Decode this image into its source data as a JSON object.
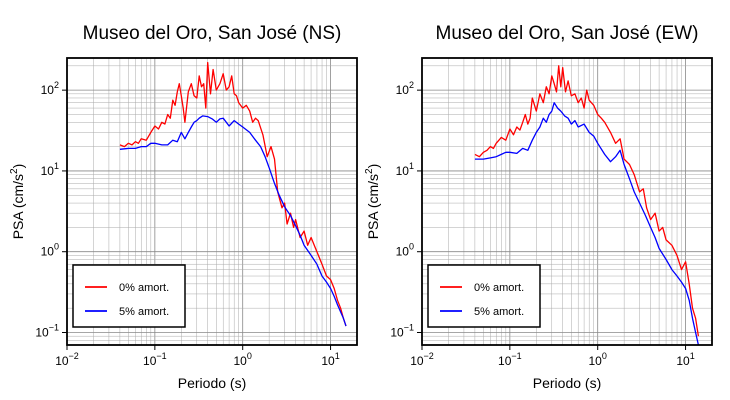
{
  "chart_data": [
    {
      "type": "line",
      "title": "Museo del Oro, San José (NS)",
      "xlabel": "Periodo (s)",
      "ylabel_main": "PSA (cm/s",
      "ylabel_sup": "2",
      "ylabel_close": ")",
      "x_scale": "log",
      "y_scale": "log",
      "xlim": [
        0.01,
        20
      ],
      "ylim": [
        0.07,
        250
      ],
      "x_ticks": [
        {
          "base": "10",
          "exp": "−2"
        },
        {
          "base": "10",
          "exp": "−1"
        },
        {
          "base": "10",
          "exp": "0"
        },
        {
          "base": "10",
          "exp": "1"
        }
      ],
      "y_ticks": [
        {
          "base": "10",
          "exp": "−1"
        },
        {
          "base": "10",
          "exp": "0"
        },
        {
          "base": "10",
          "exp": "1"
        },
        {
          "base": "10",
          "exp": "2"
        }
      ],
      "grid": true,
      "legend_position": "bottom-left",
      "series": [
        {
          "name": "0% amort.",
          "color": "#ff0000",
          "x": [
            0.04,
            0.045,
            0.05,
            0.055,
            0.06,
            0.065,
            0.07,
            0.08,
            0.09,
            0.1,
            0.11,
            0.12,
            0.13,
            0.14,
            0.15,
            0.16,
            0.17,
            0.18,
            0.19,
            0.2,
            0.21,
            0.22,
            0.24,
            0.26,
            0.28,
            0.3,
            0.32,
            0.34,
            0.36,
            0.38,
            0.4,
            0.43,
            0.46,
            0.5,
            0.55,
            0.6,
            0.65,
            0.7,
            0.75,
            0.8,
            0.85,
            0.9,
            1.0,
            1.1,
            1.2,
            1.3,
            1.4,
            1.5,
            1.7,
            1.9,
            2.1,
            2.3,
            2.5,
            2.8,
            3.0,
            3.2,
            3.5,
            3.8,
            4.0,
            4.5,
            5.0,
            5.5,
            6.0,
            7.0,
            8.0,
            9.0,
            10.0,
            11.0,
            12.0,
            13.0,
            14.0,
            15.0
          ],
          "y": [
            21,
            20,
            22,
            21,
            23,
            22,
            25,
            24,
            30,
            36,
            33,
            40,
            38,
            50,
            45,
            75,
            65,
            95,
            120,
            85,
            60,
            40,
            95,
            120,
            85,
            80,
            150,
            110,
            120,
            60,
            220,
            90,
            180,
            100,
            120,
            160,
            100,
            110,
            150,
            90,
            85,
            70,
            60,
            65,
            55,
            40,
            45,
            42,
            28,
            15,
            20,
            14,
            5.5,
            3.5,
            4.0,
            2.2,
            3.0,
            2.0,
            2.5,
            1.5,
            1.8,
            1.2,
            1.5,
            1.0,
            0.7,
            0.5,
            0.45,
            0.35,
            0.25,
            0.2,
            0.15,
            0.12
          ]
        },
        {
          "name": "5% amort.",
          "color": "#0000ff",
          "x": [
            0.04,
            0.05,
            0.06,
            0.07,
            0.08,
            0.09,
            0.1,
            0.12,
            0.14,
            0.16,
            0.18,
            0.2,
            0.22,
            0.24,
            0.26,
            0.28,
            0.3,
            0.32,
            0.35,
            0.4,
            0.45,
            0.5,
            0.55,
            0.6,
            0.7,
            0.8,
            0.9,
            1.0,
            1.2,
            1.4,
            1.6,
            1.8,
            2.0,
            2.3,
            2.6,
            3.0,
            3.5,
            4.0,
            4.5,
            5.0,
            6.0,
            7.0,
            8.0,
            9.0,
            10.0,
            11.0,
            12.0,
            13.0,
            14.0,
            15.0
          ],
          "y": [
            18.5,
            19,
            19,
            20,
            20,
            22,
            22,
            21,
            21,
            24,
            23,
            30,
            25,
            30,
            35,
            40,
            42,
            45,
            48,
            47,
            44,
            40,
            44,
            45,
            36,
            42,
            38,
            35,
            30,
            24,
            20,
            15,
            11,
            7,
            5,
            3.6,
            2.8,
            2.1,
            1.6,
            1.2,
            0.9,
            0.7,
            0.5,
            0.42,
            0.35,
            0.28,
            0.22,
            0.18,
            0.15,
            0.12
          ]
        }
      ]
    },
    {
      "type": "line",
      "title": "Museo del Oro, San José (EW)",
      "xlabel": "Periodo (s)",
      "ylabel_main": "PSA (cm/s",
      "ylabel_sup": "2",
      "ylabel_close": ")",
      "x_scale": "log",
      "y_scale": "log",
      "xlim": [
        0.01,
        20
      ],
      "ylim": [
        0.07,
        250
      ],
      "x_ticks": [
        {
          "base": "10",
          "exp": "−2"
        },
        {
          "base": "10",
          "exp": "−1"
        },
        {
          "base": "10",
          "exp": "0"
        },
        {
          "base": "10",
          "exp": "1"
        }
      ],
      "y_ticks": [
        {
          "base": "10",
          "exp": "−1"
        },
        {
          "base": "10",
          "exp": "0"
        },
        {
          "base": "10",
          "exp": "1"
        },
        {
          "base": "10",
          "exp": "2"
        }
      ],
      "grid": true,
      "legend_position": "bottom-left",
      "series": [
        {
          "name": "0% amort.",
          "color": "#ff0000",
          "x": [
            0.04,
            0.045,
            0.05,
            0.055,
            0.06,
            0.065,
            0.07,
            0.08,
            0.09,
            0.1,
            0.11,
            0.12,
            0.13,
            0.14,
            0.15,
            0.16,
            0.17,
            0.18,
            0.2,
            0.22,
            0.24,
            0.26,
            0.28,
            0.3,
            0.32,
            0.34,
            0.36,
            0.38,
            0.4,
            0.43,
            0.46,
            0.5,
            0.55,
            0.6,
            0.65,
            0.7,
            0.75,
            0.8,
            0.9,
            1.0,
            1.1,
            1.2,
            1.4,
            1.6,
            1.8,
            2.0,
            2.3,
            2.6,
            3.0,
            3.3,
            3.6,
            4.0,
            4.5,
            5.0,
            5.5,
            6.0,
            7.0,
            8.0,
            9.0,
            10.0,
            11.0,
            12.0,
            13.0,
            14.0
          ],
          "y": [
            16,
            15,
            17,
            18,
            20,
            19,
            22,
            26,
            24,
            33,
            28,
            35,
            32,
            40,
            50,
            38,
            45,
            80,
            55,
            90,
            70,
            110,
            90,
            150,
            120,
            95,
            200,
            110,
            190,
            95,
            130,
            85,
            90,
            70,
            80,
            60,
            100,
            75,
            65,
            50,
            45,
            40,
            30,
            22,
            25,
            14,
            12,
            9,
            5.5,
            6.0,
            3.5,
            2.5,
            3.0,
            1.8,
            2.0,
            1.4,
            1.2,
            0.9,
            0.6,
            0.75,
            0.4,
            0.2,
            0.15,
            0.09
          ]
        },
        {
          "name": "5% amort.",
          "color": "#0000ff",
          "x": [
            0.04,
            0.05,
            0.06,
            0.07,
            0.08,
            0.09,
            0.1,
            0.12,
            0.14,
            0.16,
            0.18,
            0.2,
            0.22,
            0.24,
            0.26,
            0.28,
            0.3,
            0.32,
            0.35,
            0.38,
            0.42,
            0.46,
            0.5,
            0.55,
            0.6,
            0.7,
            0.8,
            0.9,
            1.0,
            1.2,
            1.4,
            1.6,
            1.8,
            2.0,
            2.3,
            2.6,
            3.0,
            3.5,
            4.0,
            4.5,
            5.0,
            6.0,
            7.0,
            8.0,
            9.0,
            10.0,
            11.0,
            12.0,
            13.0,
            14.0
          ],
          "y": [
            14,
            14,
            14.5,
            15,
            16,
            17,
            17,
            16.5,
            19,
            18,
            24,
            30,
            35,
            45,
            40,
            50,
            55,
            70,
            60,
            55,
            48,
            45,
            38,
            42,
            35,
            38,
            30,
            27,
            22,
            16,
            13,
            15,
            18,
            12,
            8,
            5.5,
            4.0,
            2.8,
            2.0,
            1.5,
            1.1,
            0.8,
            0.6,
            0.5,
            0.42,
            0.35,
            0.25,
            0.15,
            0.1,
            0.07
          ]
        }
      ]
    }
  ]
}
